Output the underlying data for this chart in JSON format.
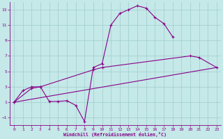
{
  "xlabel": "Windchill (Refroidissement éolien,°C)",
  "bg_color": "#c5e8e8",
  "grid_color": "#a0cccc",
  "line_color": "#880088",
  "xlim": [
    -0.5,
    23.5
  ],
  "ylim": [
    -2.0,
    14.0
  ],
  "xticks": [
    0,
    1,
    2,
    3,
    4,
    5,
    6,
    7,
    8,
    9,
    10,
    11,
    12,
    13,
    14,
    15,
    16,
    17,
    18,
    19,
    20,
    21,
    22,
    23
  ],
  "yticks": [
    -1,
    1,
    3,
    5,
    7,
    9,
    11,
    13
  ],
  "curve1_x": [
    0,
    1,
    2,
    3,
    4,
    5,
    6,
    7,
    8,
    9,
    10,
    11,
    12,
    13,
    14,
    15,
    16,
    17,
    18
  ],
  "curve1_y": [
    1.0,
    2.5,
    3.0,
    3.0,
    1.1,
    1.1,
    1.2,
    0.6,
    -1.5,
    5.5,
    6.0,
    11.0,
    12.5,
    13.0,
    13.5,
    13.2,
    12.0,
    11.2,
    9.5
  ],
  "curve2_x": [
    0,
    2,
    3,
    9,
    10,
    20,
    21,
    23
  ],
  "curve2_y": [
    1.0,
    2.8,
    3.0,
    5.2,
    5.5,
    7.0,
    6.8,
    5.5
  ],
  "curve3_x": [
    0,
    23
  ],
  "curve3_y": [
    1.0,
    5.5
  ]
}
